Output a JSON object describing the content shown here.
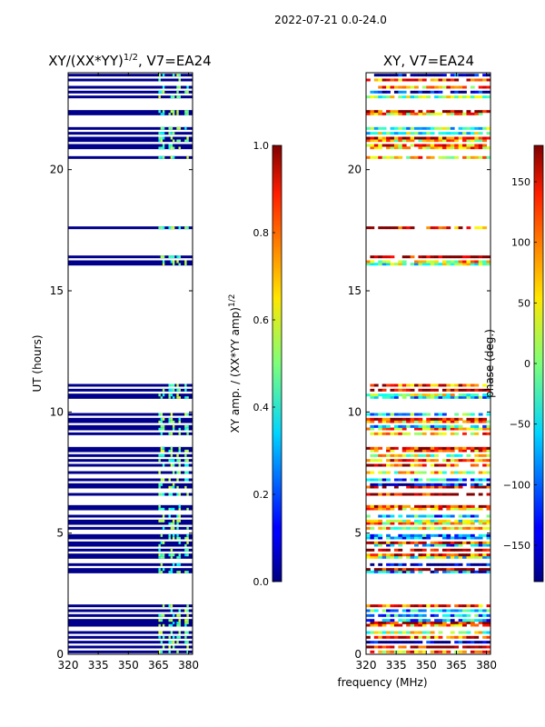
{
  "figure": {
    "suptitle": "2022-07-21 0.0-24.0",
    "xlabel": "frequency (MHz)"
  },
  "chart_data": [
    {
      "type": "heatmap",
      "title": "XY/(XX*YY)",
      "title_superscript": "1/2",
      "title_suffix": ", V7=EA24",
      "ylabel": "UT (hours)",
      "xlim": [
        320,
        382
      ],
      "ylim": [
        0,
        24
      ],
      "xticks": [
        "320",
        "335",
        "350",
        "365",
        "380"
      ],
      "yticks": [
        "0",
        "5",
        "10",
        "15",
        "20"
      ],
      "flagged_color": "#00008b",
      "bright_channels_mhz": [
        365,
        366,
        367,
        370,
        371,
        372,
        374,
        375,
        378,
        379
      ],
      "data_rows_ut_hours": [
        0.1,
        0.3,
        0.5,
        0.7,
        0.9,
        1.2,
        1.3,
        1.4,
        1.6,
        1.8,
        2.0,
        3.4,
        3.5,
        3.7,
        4.0,
        4.1,
        4.3,
        4.5,
        4.6,
        4.8,
        4.9,
        5.2,
        5.4,
        5.5,
        5.7,
        6.0,
        6.1,
        6.6,
        6.9,
        7.0,
        7.2,
        7.5,
        7.8,
        8.0,
        8.2,
        8.4,
        8.5,
        9.1,
        9.3,
        9.4,
        9.6,
        9.7,
        9.9,
        10.6,
        10.7,
        10.9,
        11.1,
        16.1,
        16.2,
        16.4,
        17.6,
        20.5,
        20.9,
        21.0,
        21.2,
        21.3,
        21.5,
        21.7,
        22.3,
        22.4,
        23.0,
        23.2,
        23.4,
        23.7,
        23.9
      ]
    },
    {
      "type": "heatmap",
      "title": "XY, V7=EA24",
      "xlim": [
        320,
        382
      ],
      "ylim": [
        0,
        24
      ],
      "xticks": [
        "320",
        "335",
        "350",
        "365",
        "380"
      ],
      "yticks": [
        "0",
        "5",
        "10",
        "15",
        "20"
      ],
      "data_rows_ut_hours": [
        0.1,
        0.3,
        0.5,
        0.7,
        0.9,
        1.2,
        1.3,
        1.4,
        1.6,
        1.8,
        2.0,
        3.4,
        3.5,
        3.7,
        4.0,
        4.1,
        4.3,
        4.5,
        4.6,
        4.8,
        4.9,
        5.2,
        5.4,
        5.5,
        5.7,
        6.0,
        6.1,
        6.6,
        6.9,
        7.0,
        7.2,
        7.5,
        7.8,
        8.0,
        8.2,
        8.4,
        8.5,
        9.1,
        9.3,
        9.4,
        9.6,
        9.7,
        9.9,
        10.6,
        10.7,
        10.9,
        11.1,
        16.1,
        16.2,
        16.4,
        17.6,
        20.5,
        20.9,
        21.0,
        21.2,
        21.3,
        21.5,
        21.7,
        22.3,
        22.4,
        23.0,
        23.2,
        23.4,
        23.7,
        23.9
      ]
    }
  ],
  "colorbars": [
    {
      "label_prefix": "XY amp. / (XX*YY amp)",
      "label_superscript": "1/2",
      "range": [
        0.0,
        1.0
      ],
      "ticks": [
        "0.0",
        "0.2",
        "0.4",
        "0.6",
        "0.8",
        "1.0"
      ],
      "tick_values": [
        0.0,
        0.2,
        0.4,
        0.6,
        0.8,
        1.0
      ],
      "colormap": "jet"
    },
    {
      "label": "phase (deg.)",
      "range": [
        -180,
        180
      ],
      "ticks": [
        "−150",
        "−100",
        "−50",
        "0",
        "50",
        "100",
        "150"
      ],
      "tick_values": [
        -150,
        -100,
        -50,
        0,
        50,
        100,
        150
      ],
      "colormap": "jet"
    }
  ]
}
